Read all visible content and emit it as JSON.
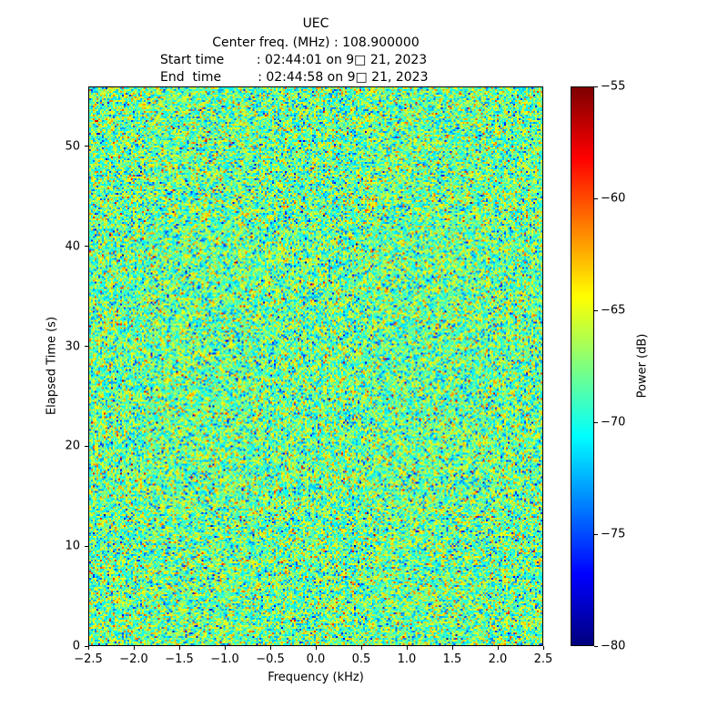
{
  "header": {
    "title": "UEC",
    "center_freq_line": "Center freq. (MHz) : 108.900000",
    "start_time_line": "Start time        : 02:44:01 on 9□ 21, 2023",
    "end_time_line": "End  time         : 02:44:58 on 9□ 21, 2023"
  },
  "chart_data": {
    "type": "heatmap",
    "title": "UEC",
    "subtitle_lines": [
      "Center freq. (MHz) : 108.900000",
      "Start time : 02:44:01 on 9□ 21, 2023",
      "End time : 02:44:58 on 9□ 21, 2023"
    ],
    "xlabel": "Frequency (kHz)",
    "ylabel": "Elapsed Time (s)",
    "colorbar_label": "Power (dB)",
    "xlim": [
      -2.5,
      2.5
    ],
    "ylim": [
      0,
      56
    ],
    "color_range_db": [
      -80,
      -55
    ],
    "colormap": "jet",
    "grid": false,
    "legend": false,
    "xticks": [
      {
        "value": -2.5,
        "label": "−2.5"
      },
      {
        "value": -2.0,
        "label": "−2.0"
      },
      {
        "value": -1.5,
        "label": "−1.5"
      },
      {
        "value": -1.0,
        "label": "−1.0"
      },
      {
        "value": -0.5,
        "label": "−0.5"
      },
      {
        "value": 0.0,
        "label": "0.0"
      },
      {
        "value": 0.5,
        "label": "0.5"
      },
      {
        "value": 1.0,
        "label": "1.0"
      },
      {
        "value": 1.5,
        "label": "1.5"
      },
      {
        "value": 2.0,
        "label": "2.0"
      },
      {
        "value": 2.5,
        "label": "2.5"
      }
    ],
    "yticks": [
      {
        "value": 0,
        "label": "0"
      },
      {
        "value": 10,
        "label": "10"
      },
      {
        "value": 20,
        "label": "20"
      },
      {
        "value": 30,
        "label": "30"
      },
      {
        "value": 40,
        "label": "40"
      },
      {
        "value": 50,
        "label": "50"
      }
    ],
    "colorbar_ticks": [
      {
        "value": -55,
        "label": "−55"
      },
      {
        "value": -60,
        "label": "−60"
      },
      {
        "value": -65,
        "label": "−65"
      },
      {
        "value": -70,
        "label": "−70"
      },
      {
        "value": -75,
        "label": "−75"
      },
      {
        "value": -80,
        "label": "−80"
      }
    ],
    "noise_model": {
      "mean_db": -68,
      "std_db": 3.2,
      "seed": 42,
      "cols": 250,
      "rows": 307
    }
  }
}
